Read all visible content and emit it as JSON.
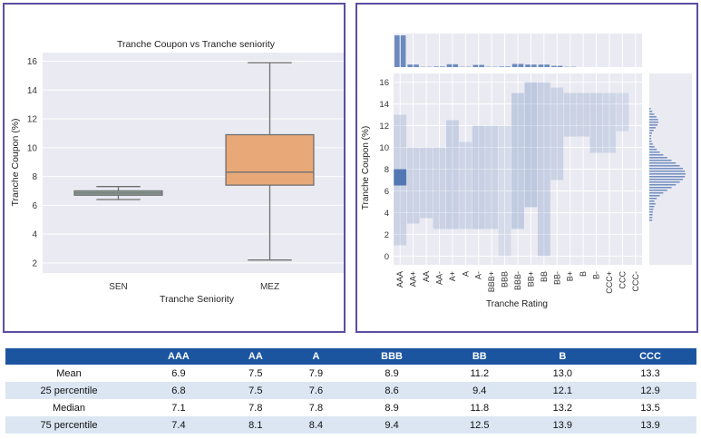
{
  "chart_data": [
    {
      "type": "box",
      "title": "Tranche Coupon vs Tranche seniority",
      "xlabel": "Tranche Seniority",
      "ylabel": "Tranche Coupon (%)",
      "ylim": [
        1.3,
        16.6
      ],
      "yticks": [
        2,
        4,
        6,
        8,
        10,
        12,
        14,
        16
      ],
      "categories": [
        "SEN",
        "MEZ"
      ],
      "boxes": [
        {
          "name": "SEN",
          "whisker_low": 6.4,
          "q1": 6.7,
          "median": 6.85,
          "q3": 7.0,
          "whisker_high": 7.3,
          "color": "#8fa89e"
        },
        {
          "name": "MEZ",
          "whisker_low": 2.2,
          "q1": 7.4,
          "median": 8.3,
          "q3": 10.9,
          "whisker_high": 15.9,
          "color": "#e8a877"
        }
      ],
      "grid": true
    },
    {
      "type": "heatmap",
      "subtype": "joint-histogram",
      "xlabel": "Tranche Rating",
      "ylabel": "Tranche Coupon (%)",
      "ylim": [
        -0.8,
        16.8
      ],
      "yticks": [
        0,
        2,
        4,
        6,
        8,
        10,
        12,
        14,
        16
      ],
      "categories": [
        "AAA",
        "AA+",
        "AA",
        "AA-",
        "A+",
        "A",
        "A-",
        "BBB+",
        "BBB",
        "BBB-",
        "BB+",
        "BB",
        "BB-",
        "B+",
        "B",
        "B-",
        "CCC+",
        "CCC",
        "CCC-"
      ],
      "marginal_x_counts": [
        100,
        8,
        1,
        2,
        9,
        1,
        7,
        1,
        2,
        10,
        8,
        8,
        4,
        1,
        0,
        0,
        0,
        0,
        0
      ],
      "cells": [
        {
          "x": "AAA",
          "y0": 1.0,
          "y1": 13.0,
          "density": 0.2
        },
        {
          "x": "AAA",
          "y0": 6.5,
          "y1": 8.0,
          "density": 0.95
        },
        {
          "x": "AA+",
          "y0": 3.0,
          "y1": 10.0,
          "density": 0.2
        },
        {
          "x": "AA",
          "y0": 3.5,
          "y1": 10.0,
          "density": 0.2
        },
        {
          "x": "AA-",
          "y0": 2.5,
          "y1": 10.0,
          "density": 0.2
        },
        {
          "x": "A+",
          "y0": 2.5,
          "y1": 12.5,
          "density": 0.22
        },
        {
          "x": "A",
          "y0": 2.5,
          "y1": 10.5,
          "density": 0.18
        },
        {
          "x": "A-",
          "y0": 2.5,
          "y1": 12.0,
          "density": 0.22
        },
        {
          "x": "BBB+",
          "y0": 2.5,
          "y1": 12.0,
          "density": 0.2
        },
        {
          "x": "BBB",
          "y0": 0.0,
          "y1": 12.0,
          "density": 0.12
        },
        {
          "x": "BBB-",
          "y0": 2.5,
          "y1": 15.0,
          "density": 0.25
        },
        {
          "x": "BB+",
          "y0": 4.5,
          "y1": 16.0,
          "density": 0.28
        },
        {
          "x": "BB",
          "y0": 0.0,
          "y1": 16.0,
          "density": 0.22
        },
        {
          "x": "BB-",
          "y0": 7.0,
          "y1": 15.5,
          "density": 0.2
        },
        {
          "x": "B+",
          "y0": 11.0,
          "y1": 15.0,
          "density": 0.2
        },
        {
          "x": "B",
          "y0": 11.0,
          "y1": 15.0,
          "density": 0.2
        },
        {
          "x": "B-",
          "y0": 9.5,
          "y1": 15.0,
          "density": 0.2
        },
        {
          "x": "CCC+",
          "y0": 9.5,
          "y1": 15.0,
          "density": 0.18
        },
        {
          "x": "CCC",
          "y0": 11.5,
          "y1": 15.0,
          "density": 0.15
        }
      ],
      "marginal_y_peak": 7.5,
      "grid": true
    }
  ],
  "table": {
    "headers": [
      "",
      "AAA",
      "AA",
      "A",
      "BBB",
      "BB",
      "B",
      "CCC"
    ],
    "rows": [
      {
        "label": "Mean",
        "values": [
          "6.9",
          "7.5",
          "7.9",
          "8.9",
          "11.2",
          "13.0",
          "13.3"
        ]
      },
      {
        "label": "25 percentile",
        "values": [
          "6.8",
          "7.5",
          "7.6",
          "8.6",
          "9.4",
          "12.1",
          "12.9"
        ]
      },
      {
        "label": "Median",
        "values": [
          "7.1",
          "7.8",
          "7.8",
          "8.9",
          "11.8",
          "13.2",
          "13.5"
        ]
      },
      {
        "label": "75 percentile",
        "values": [
          "7.4",
          "8.1",
          "8.4",
          "9.4",
          "12.5",
          "13.9",
          "13.9"
        ]
      }
    ]
  },
  "colors": {
    "panel_border": "#5b4ea3",
    "plot_bg": "#eaeaf2",
    "heat_base": "#4c72b0",
    "table_header": "#1b55a0",
    "table_stripe": "#dbe6f2"
  }
}
